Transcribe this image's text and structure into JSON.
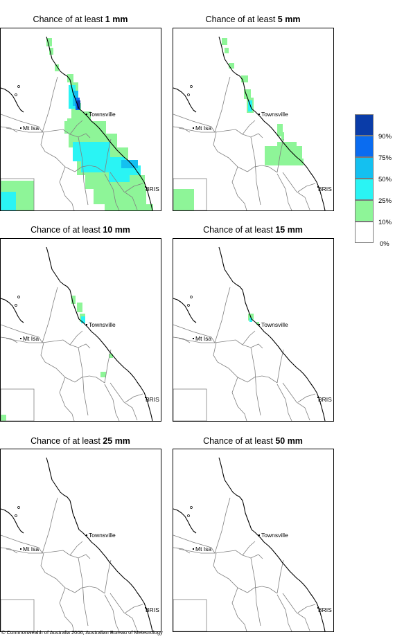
{
  "panels": [
    {
      "prefix": "Chance of at least ",
      "amount": "1 mm"
    },
    {
      "prefix": "Chance of at least ",
      "amount": "5 mm"
    },
    {
      "prefix": "Chance of at least ",
      "amount": "10 mm"
    },
    {
      "prefix": "Chance of at least ",
      "amount": "15 mm"
    },
    {
      "prefix": "Chance of at least ",
      "amount": "25 mm"
    },
    {
      "prefix": "Chance of at least ",
      "amount": "50 mm"
    }
  ],
  "places": {
    "townsville": "Townsville",
    "mt_isa": "Mt Isa",
    "brisbane": "BRIS"
  },
  "legend": {
    "labels": [
      "90%",
      "75%",
      "50%",
      "25%",
      "10%",
      "0%"
    ],
    "colors": [
      "#0a3ca8",
      "#0a6cf0",
      "#14c0f0",
      "#2af4f4",
      "#8ef598",
      "#ffffff"
    ]
  },
  "copyright": "© Commonwealth of Australia 2006, Australian Bureau of Meteorology",
  "colors": {
    "border": "#000000",
    "boundary": "#808080",
    "green": "#8ef598",
    "cyan": "#2af4f4",
    "sky": "#14c0f0",
    "blue": "#0a6cf0",
    "navy": "#0a3ca8"
  }
}
